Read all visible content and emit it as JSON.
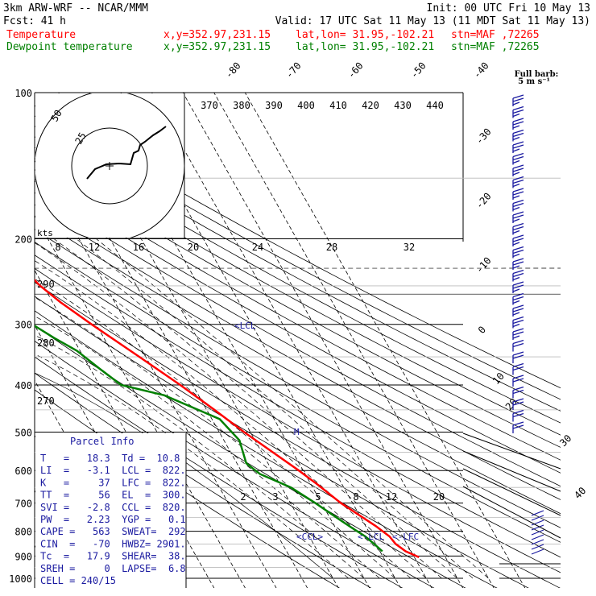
{
  "header": {
    "model": "3km ARW-WRF -- NCAR/MMM",
    "init": "Init: 00 UTC Fri 10 May 13",
    "fcst_label": "Fcst:",
    "fcst_value": "41 h",
    "valid": "Valid: 17 UTC Sat 11 May 13 (11 MDT Sat 11 May 13)",
    "temp_label": "Temperature",
    "dew_label": "Dewpoint temperature",
    "xy": "x,y=352.97,231.15",
    "latlon": "lat,lon= 31.95,-102.21",
    "stn": "stn=MAF ,72265",
    "barb_title_1": "Full barb:",
    "barb_title_2": "5 m s⁻¹"
  },
  "colors": {
    "temperature": "#ff0000",
    "dewpoint": "#008000",
    "info": "#1a1aa0",
    "grid": "#000000"
  },
  "axes": {
    "pressure_levels": [
      "100",
      "200",
      "300",
      "400",
      "500",
      "600",
      "700",
      "800",
      "900",
      "1000"
    ],
    "isotherm_labels": [
      "-80",
      "-70",
      "-60",
      "-50",
      "-40",
      "-30",
      "-20",
      "-10",
      "0",
      "10",
      "20",
      "30",
      "40"
    ],
    "theta_labels": [
      "370",
      "380",
      "390",
      "400",
      "410",
      "420",
      "430",
      "440"
    ],
    "theta_left_labels": [
      "290",
      "280",
      "270"
    ],
    "mixing_ratio_top": [
      "8",
      "12",
      "16",
      "20",
      "24",
      "28",
      "32"
    ],
    "mixing_ratio_bottom": [
      "2",
      "3",
      "5",
      "8",
      "12",
      "20"
    ],
    "hodo_unit": "kts",
    "hodo_rings": [
      "25",
      "50"
    ],
    "markers": {
      "lcl": "<LCL",
      "m": "M",
      "ccl": "<CCL>",
      "lcl2": "<-LCL",
      "lfc": "<-LFC"
    }
  },
  "parcel_info": {
    "title": "Parcel Info",
    "rows": [
      "T   =   18.3  Td =  10.8",
      "LI  =   -3.1  LCL =  822.",
      "K   =     37  LFC =  822.",
      "TT  =     56  EL  =  300.",
      "SVI =   -2.8  CCL =  820.",
      "PW  =   2.23  YGP =   0.1",
      "CAPE =   563  SWEAT=  292",
      "CIN  =   -70  HWBZ= 2901.",
      "Tc  =   17.9  SHEAR=  38.",
      "SREH =     0  LAPSE=  6.8",
      "CELL = 240/15"
    ]
  },
  "chart_data": {
    "type": "line",
    "title": "3km ARW-WRF -- NCAR/MMM",
    "ylabel": "",
    "y_scale": "log",
    "ylim": [
      1000,
      100
    ],
    "series": [
      {
        "name": "Temperature",
        "points": [
          {
            "p": 905,
            "t": 21.5
          },
          {
            "p": 880,
            "t": 18.3
          },
          {
            "p": 850,
            "t": 16.4
          },
          {
            "p": 820,
            "t": 15.8
          },
          {
            "p": 780,
            "t": 13.2
          },
          {
            "p": 700,
            "t": 6.2
          },
          {
            "p": 640,
            "t": 2.0
          },
          {
            "p": 600,
            "t": -1.4
          },
          {
            "p": 550,
            "t": -6.5
          },
          {
            "p": 500,
            "t": -12.0
          },
          {
            "p": 450,
            "t": -17.5
          },
          {
            "p": 400,
            "t": -24.0
          },
          {
            "p": 350,
            "t": -32.0
          },
          {
            "p": 300,
            "t": -41.5
          },
          {
            "p": 270,
            "t": -47.5
          },
          {
            "p": 250,
            "t": -51.0
          },
          {
            "p": 225,
            "t": -54.0
          },
          {
            "p": 200,
            "t": -56.5
          },
          {
            "p": 170,
            "t": -58.0
          },
          {
            "p": 150,
            "t": -59.0
          },
          {
            "p": 130,
            "t": -60.0
          },
          {
            "p": 115,
            "t": -60.5
          },
          {
            "p": 100,
            "t": -61.5
          }
        ]
      },
      {
        "name": "Dewpoint temperature",
        "points": [
          {
            "p": 880,
            "t": 10.8
          },
          {
            "p": 850,
            "t": 9.5
          },
          {
            "p": 820,
            "t": 8.0
          },
          {
            "p": 790,
            "t": 5.5
          },
          {
            "p": 760,
            "t": 3.0
          },
          {
            "p": 700,
            "t": -2.0
          },
          {
            "p": 650,
            "t": -7.0
          },
          {
            "p": 610,
            "t": -14.5
          },
          {
            "p": 580,
            "t": -17.0
          },
          {
            "p": 520,
            "t": -15.0
          },
          {
            "p": 470,
            "t": -17.5
          },
          {
            "p": 420,
            "t": -31.0
          },
          {
            "p": 400,
            "t": -43.0
          },
          {
            "p": 370,
            "t": -47.0
          },
          {
            "p": 340,
            "t": -51.0
          },
          {
            "p": 320,
            "t": -56.0
          },
          {
            "p": 290,
            "t": -63.0
          },
          {
            "p": 270,
            "t": -68.0
          },
          {
            "p": 250,
            "t": -67.5
          },
          {
            "p": 230,
            "t": -65.5
          },
          {
            "p": 200,
            "t": -66.5
          },
          {
            "p": 170,
            "t": -68.0
          },
          {
            "p": 140,
            "t": -70.5
          },
          {
            "p": 120,
            "t": -73.0
          },
          {
            "p": 100,
            "t": -75.5
          }
        ]
      }
    ],
    "parcel": {
      "lcl_p": 822,
      "lfc_p": 822,
      "el_p": 300,
      "ccl_p": 820
    }
  }
}
